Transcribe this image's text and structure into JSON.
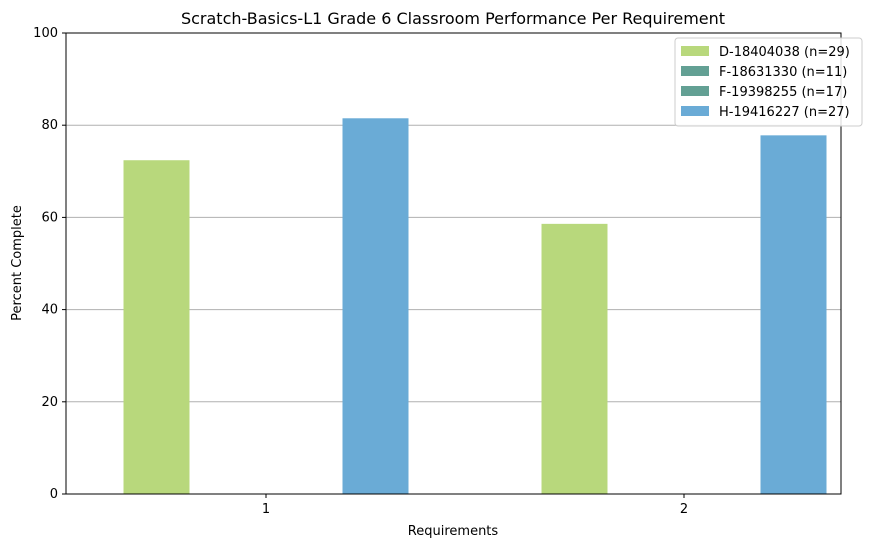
{
  "chart_data": {
    "type": "bar",
    "title": "Scratch-Basics-L1 Grade 6 Classroom Performance Per Requirement",
    "xlabel": "Requirements",
    "ylabel": "Percent Complete",
    "categories": [
      "1",
      "2"
    ],
    "ylim": [
      0,
      100
    ],
    "yticks": [
      0,
      20,
      40,
      60,
      80,
      100
    ],
    "grid": "horizontal",
    "legend_position": "top-right",
    "series": [
      {
        "name": "D-18404038 (n=29)",
        "color": "#b8d87c",
        "values": [
          72.4,
          58.6
        ]
      },
      {
        "name": "F-18631330 (n=11)",
        "color": "#63a094",
        "values": [
          0,
          0
        ]
      },
      {
        "name": "F-19398255 (n=17)",
        "color": "#63a094",
        "values": [
          0,
          0
        ]
      },
      {
        "name": "H-19416227 (n=27)",
        "color": "#6aabd6",
        "values": [
          81.5,
          77.8
        ]
      }
    ]
  }
}
